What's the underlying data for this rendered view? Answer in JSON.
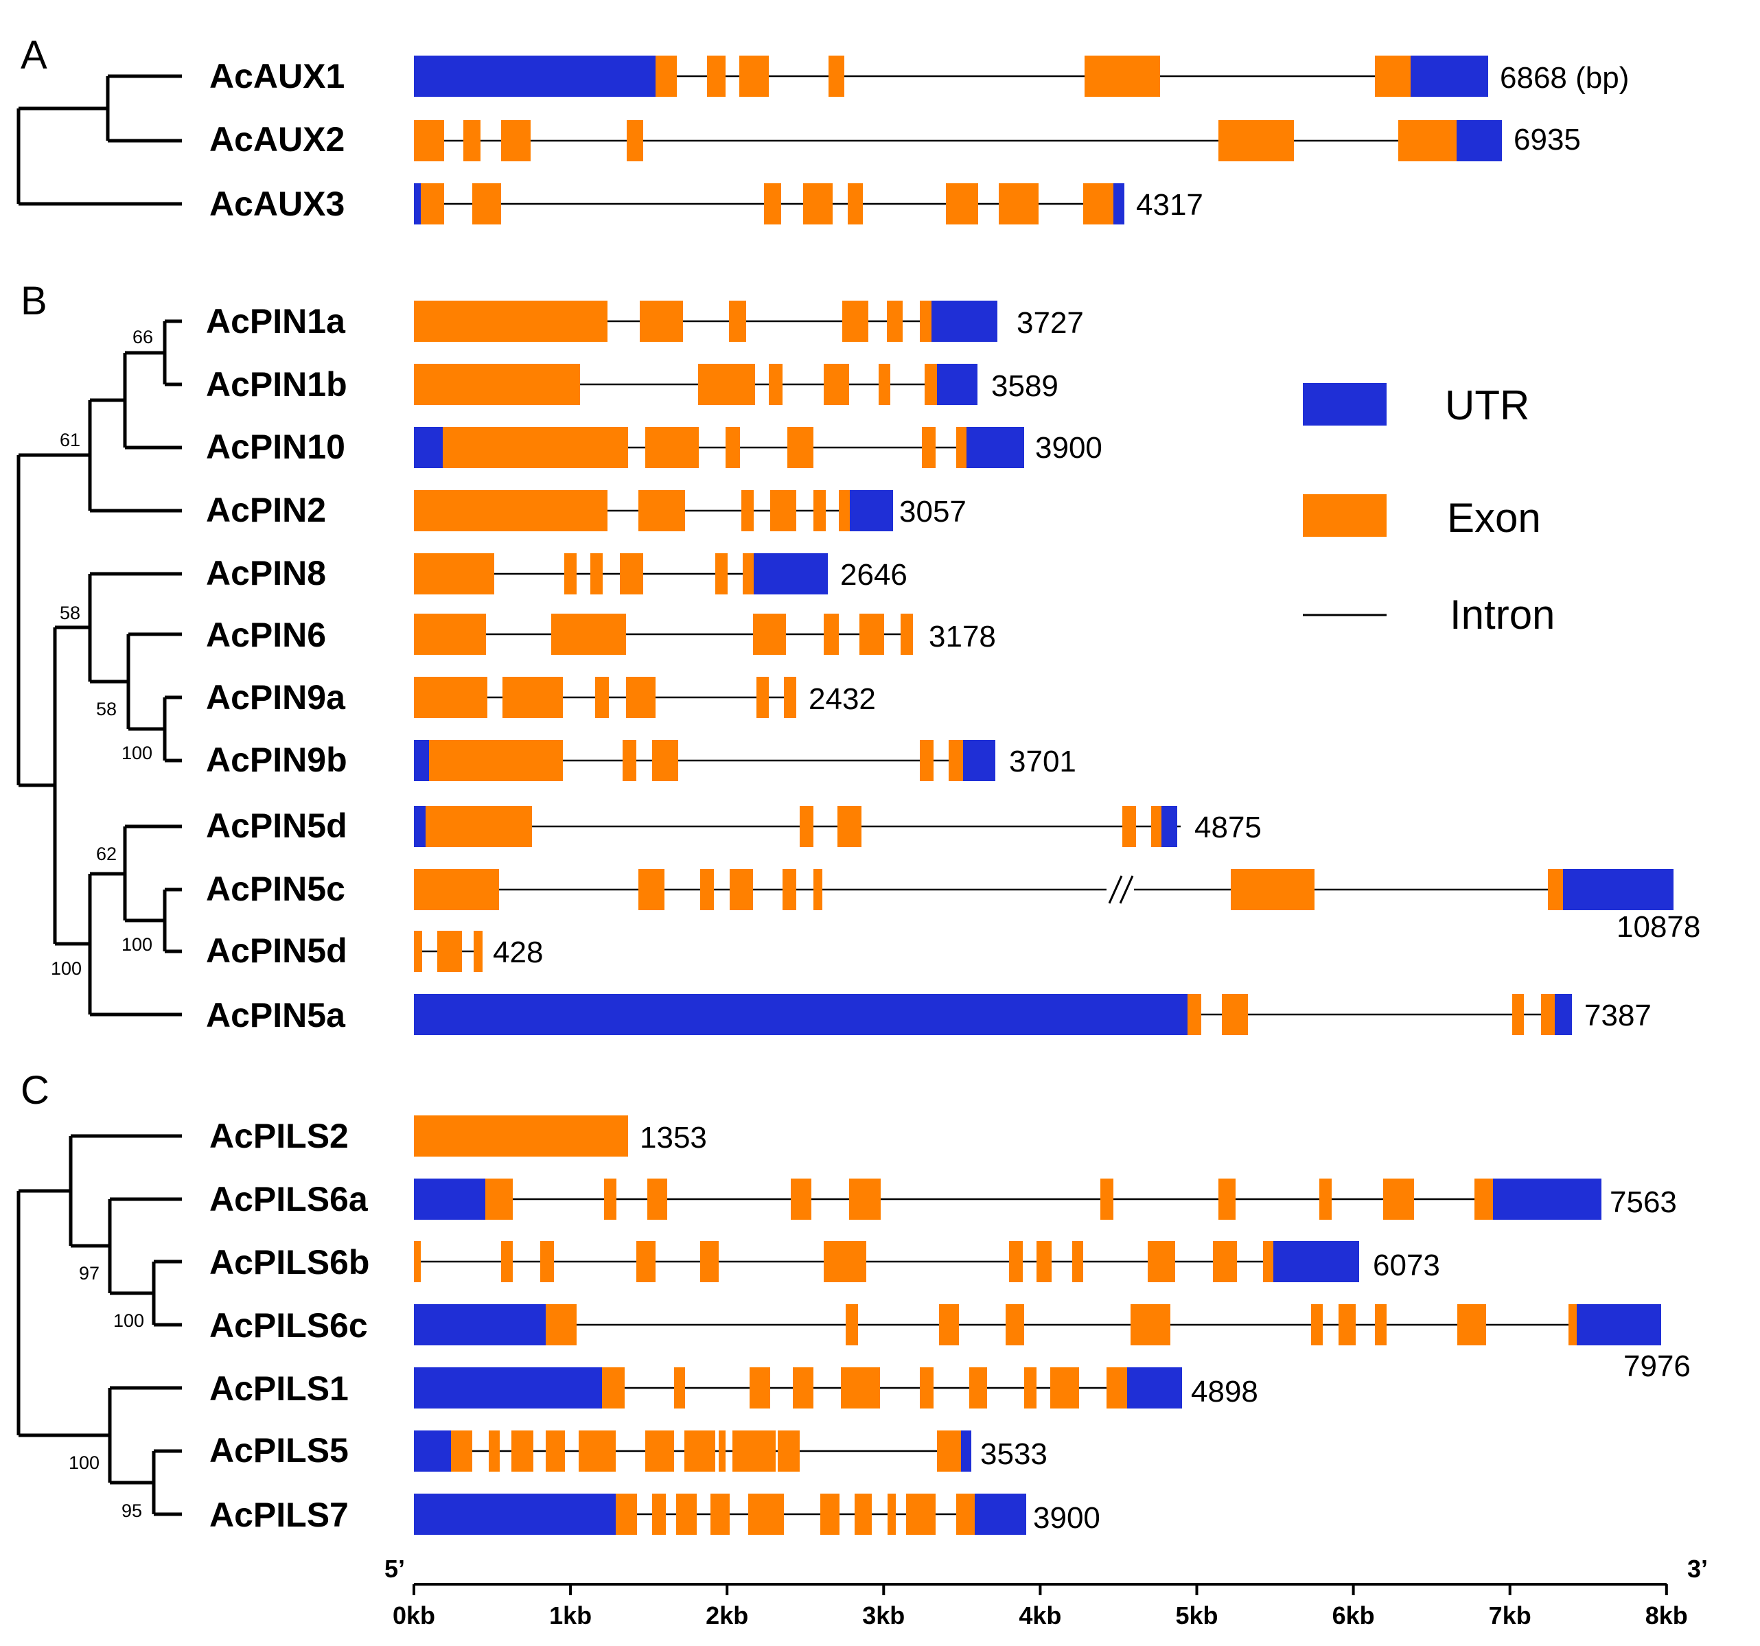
{
  "panels": {
    "A": "A",
    "B": "B",
    "C": "C"
  },
  "legend": {
    "utr": "UTR",
    "exon": "Exon",
    "intron": "Intron"
  },
  "colors": {
    "utr": "#1f2fd6",
    "exon": "#ff8000",
    "line": "#000000"
  },
  "axis": {
    "five_prime": "5’",
    "three_prime": "3’",
    "ticks": [
      "0kb",
      "1kb",
      "2kb",
      "3kb",
      "4kb",
      "5kb",
      "6kb",
      "7kb",
      "8kb"
    ]
  },
  "unit_suffix": "(bp)",
  "break_mark": "//",
  "genes": [
    {
      "name": "AcAUX1",
      "length": "6868"
    },
    {
      "name": "AcAUX2",
      "length": "6935"
    },
    {
      "name": "AcAUX3",
      "length": "4317"
    },
    {
      "name": "AcPIN1a",
      "length": "3727"
    },
    {
      "name": "AcPIN1b",
      "length": "3589"
    },
    {
      "name": "AcPIN10",
      "length": "3900"
    },
    {
      "name": "AcPIN2",
      "length": "3057"
    },
    {
      "name": "AcPIN8",
      "length": "2646"
    },
    {
      "name": "AcPIN6",
      "length": "3178"
    },
    {
      "name": "AcPIN9a",
      "length": "2432"
    },
    {
      "name": "AcPIN9b",
      "length": "3701"
    },
    {
      "name": "AcPIN5d",
      "length": "4875"
    },
    {
      "name": "AcPIN5c",
      "length": "10878"
    },
    {
      "name": "AcPIN5d",
      "length": "428"
    },
    {
      "name": "AcPIN5a",
      "length": "7387"
    },
    {
      "name": "AcPILS2",
      "length": "1353"
    },
    {
      "name": "AcPILS6a",
      "length": "7563"
    },
    {
      "name": "AcPILS6b",
      "length": "6073"
    },
    {
      "name": "AcPILS6c",
      "length": "7976"
    },
    {
      "name": "AcPILS1",
      "length": "4898"
    },
    {
      "name": "AcPILS5",
      "length": "3533"
    },
    {
      "name": "AcPILS7",
      "length": "3900"
    }
  ],
  "bootstrap": [
    "66",
    "61",
    "58",
    "58",
    "100",
    "62",
    "100",
    "100",
    "97",
    "100",
    "100",
    "95"
  ]
}
